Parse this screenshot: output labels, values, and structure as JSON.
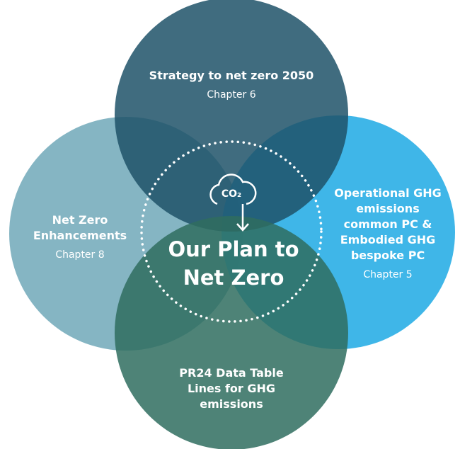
{
  "nodes": [
    {
      "title": [
        "Strategy to net zero 2050"
      ],
      "chapter": "Chapter 6"
    },
    {
      "title": [
        "Net Zero",
        "Enhancements"
      ],
      "chapter": "Chapter 8"
    },
    {
      "title": [
        "Operational GHG",
        "emissions",
        "common PC &",
        "Embodied GHG",
        "bespoke PC"
      ],
      "chapter": "Chapter 5"
    },
    {
      "title": [
        "PR24 Data Table",
        "Lines for GHG",
        "emissions"
      ]
    }
  ],
  "center": {
    "icon_label": "CO₂",
    "title": [
      "Our Plan to",
      "Net Zero"
    ]
  }
}
